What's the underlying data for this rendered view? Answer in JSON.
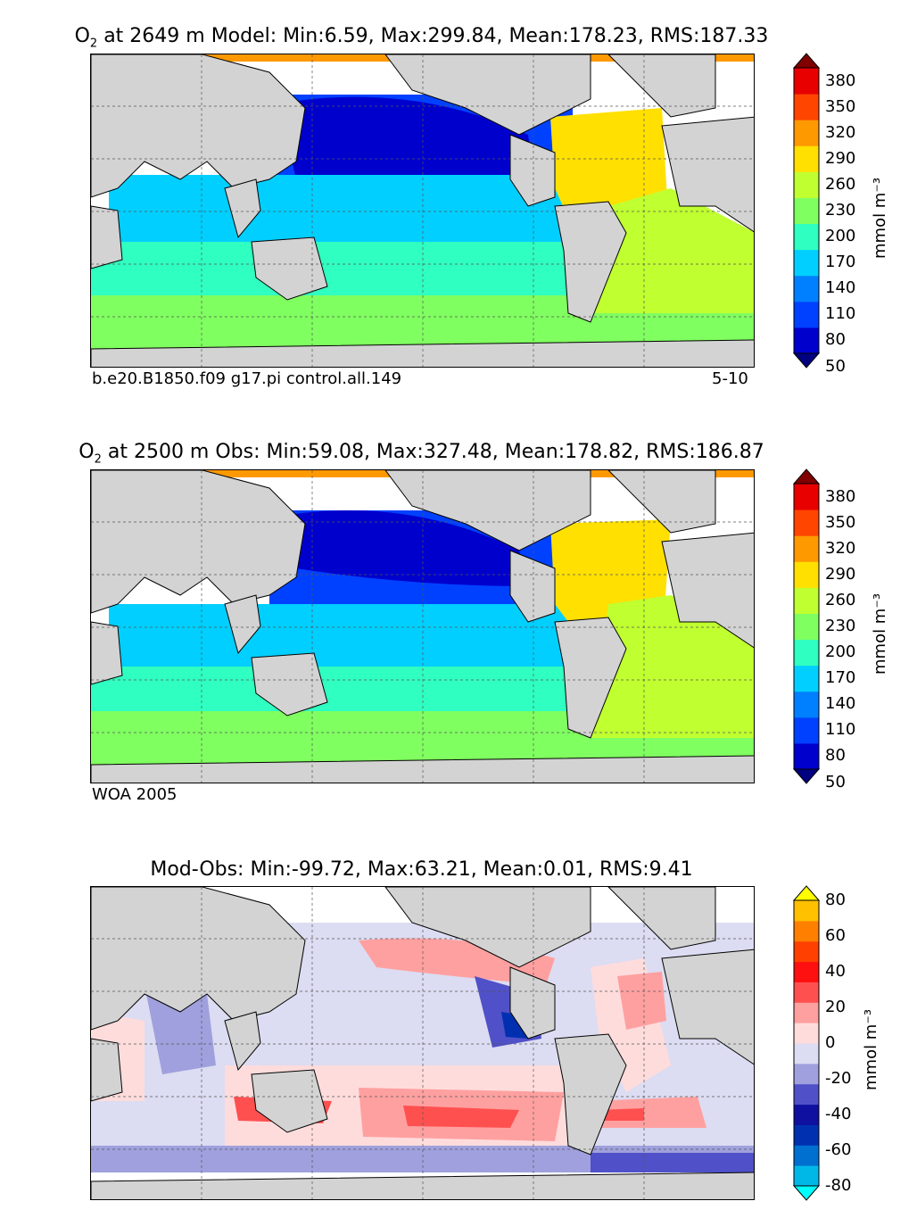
{
  "panels": [
    {
      "title_pre": "O",
      "title_sub": "2",
      "title_post": " at 2649 m Model: Min:6.59, Max:299.84, Mean:178.23, RMS:187.33",
      "caption_left": "b.e20.B1850.f09 g17.pi control.all.149",
      "caption_right": "5-10",
      "units": "mmol m⁻³",
      "colorbar": {
        "ticks": [
          "380",
          "350",
          "320",
          "290",
          "260",
          "230",
          "200",
          "170",
          "140",
          "110",
          "80",
          "50"
        ],
        "colors": [
          "#000080",
          "#0000cd",
          "#0041ff",
          "#0080ff",
          "#00cfff",
          "#2fffc0",
          "#80ff60",
          "#c0ff30",
          "#ffe000",
          "#ff9900",
          "#ff4500",
          "#e80000",
          "#800000"
        ]
      }
    },
    {
      "title_pre": "O",
      "title_sub": "2",
      "title_post": " at 2500 m Obs: Min:59.08, Max:327.48, Mean:178.82, RMS:186.87",
      "caption_left": "WOA 2005",
      "caption_right": "",
      "units": "mmol m⁻³",
      "colorbar": {
        "ticks": [
          "380",
          "350",
          "320",
          "290",
          "260",
          "230",
          "200",
          "170",
          "140",
          "110",
          "80",
          "50"
        ],
        "colors": [
          "#000080",
          "#0000cd",
          "#0041ff",
          "#0080ff",
          "#00cfff",
          "#2fffc0",
          "#80ff60",
          "#c0ff30",
          "#ffe000",
          "#ff9900",
          "#ff4500",
          "#e80000",
          "#800000"
        ]
      }
    },
    {
      "title_pre": "",
      "title_sub": "",
      "title_post": "Mod-Obs: Min:-99.72, Max:63.21, Mean:0.01, RMS:9.41",
      "caption_left": "",
      "caption_right": "",
      "units": "mmol m⁻³",
      "colorbar": {
        "ticks": [
          "80",
          "60",
          "40",
          "20",
          "0",
          "-20",
          "-40",
          "-60",
          "-80"
        ],
        "colors": [
          "#00ffff",
          "#00b8e8",
          "#0070d0",
          "#0030b0",
          "#1010a0",
          "#5050c8",
          "#9fa0dd",
          "#dcdcf2",
          "#ffdcdc",
          "#ffa0a0",
          "#ff5050",
          "#ff1010",
          "#ff4000",
          "#ff8000",
          "#ffc000",
          "#ffff00"
        ]
      }
    }
  ],
  "chart_data": [
    {
      "type": "heatmap",
      "variable": "O2",
      "depth": "2649 m",
      "source": "Model",
      "stats": {
        "min": 6.59,
        "max": 299.84,
        "mean": 178.23,
        "rms": 187.33
      },
      "colorbar_levels": [
        50,
        80,
        110,
        140,
        170,
        200,
        230,
        260,
        290,
        320,
        350,
        380
      ],
      "units": "mmol m-3",
      "map_grid": {
        "lon_ticks": [
          60,
          120,
          180,
          240,
          300
        ],
        "lat_ticks": [
          -60,
          -30,
          0,
          30,
          60
        ]
      }
    },
    {
      "type": "heatmap",
      "variable": "O2",
      "depth": "2500 m",
      "source": "Obs",
      "stats": {
        "min": 59.08,
        "max": 327.48,
        "mean": 178.82,
        "rms": 186.87
      },
      "colorbar_levels": [
        50,
        80,
        110,
        140,
        170,
        200,
        230,
        260,
        290,
        320,
        350,
        380
      ],
      "units": "mmol m-3"
    },
    {
      "type": "heatmap",
      "variable": "O2",
      "source": "Mod-Obs",
      "stats": {
        "min": -99.72,
        "max": 63.21,
        "mean": 0.01,
        "rms": 9.41
      },
      "colorbar_levels": [
        -80,
        -60,
        -40,
        -20,
        0,
        20,
        40,
        60,
        80
      ],
      "units": "mmol m-3"
    }
  ]
}
